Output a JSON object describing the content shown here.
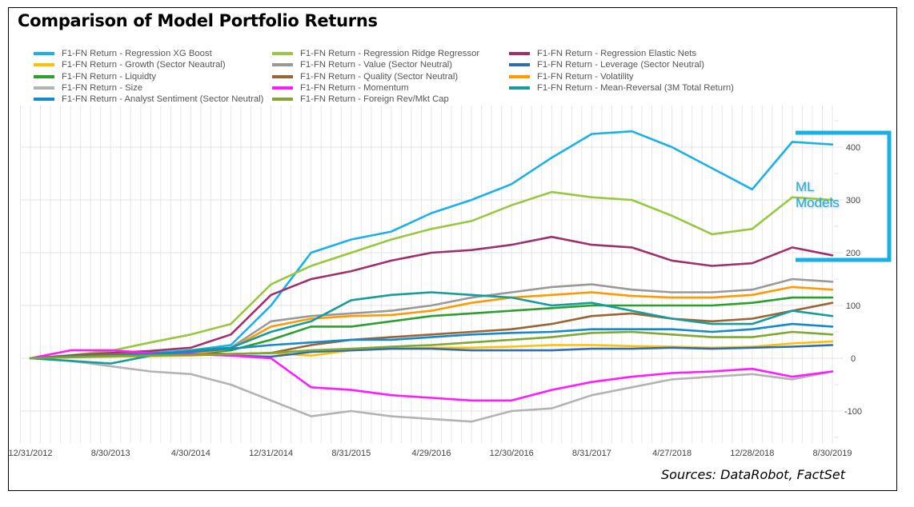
{
  "title": "Comparison of Model Portfolio Returns",
  "source": "Sources: DataRobot, FactSet",
  "annotation": {
    "label_line1": "ML",
    "label_line2": "Models",
    "color": "#18aee6"
  },
  "chart_data": {
    "type": "line",
    "title": "Comparison of Model Portfolio Returns",
    "xlabel": "",
    "ylabel": "",
    "ylim": [
      -170,
      460
    ],
    "yticks": [
      -100,
      0,
      100,
      200,
      300,
      400
    ],
    "y_axis_side": "right",
    "grid": true,
    "legend_position": "top",
    "x_tick_labels": [
      "12/31/2012",
      "8/30/2013",
      "4/30/2014",
      "12/31/2014",
      "8/31/2015",
      "4/29/2016",
      "12/30/2016",
      "8/31/2017",
      "4/27/2018",
      "12/28/2018",
      "8/30/2019"
    ],
    "x_months": [
      0,
      4,
      8,
      12,
      16,
      20,
      24,
      28,
      32,
      36,
      40,
      44,
      48,
      52,
      56,
      60,
      64,
      68,
      72,
      76,
      80
    ],
    "series": [
      {
        "name": "F1-FN Return - Regression XG Boost",
        "color": "#1ab0e8",
        "values": [
          0,
          4,
          8,
          10,
          15,
          25,
          100,
          200,
          225,
          240,
          275,
          300,
          330,
          380,
          425,
          430,
          400,
          360,
          320,
          410,
          405
        ]
      },
      {
        "name": "F1-FN Return - Regression Ridge Regressor",
        "color": "#96c93d",
        "values": [
          0,
          6,
          14,
          30,
          45,
          65,
          140,
          175,
          200,
          225,
          245,
          260,
          290,
          315,
          305,
          300,
          270,
          235,
          245,
          305,
          300
        ]
      },
      {
        "name": "F1-FN Return - Regression Elastic Nets",
        "color": "#a0306a",
        "values": [
          0,
          5,
          10,
          14,
          20,
          45,
          120,
          150,
          165,
          185,
          200,
          205,
          215,
          230,
          215,
          210,
          185,
          175,
          180,
          210,
          195
        ]
      },
      {
        "name": "F1-FN Return - Growth (Sector Neautral)",
        "color": "#ffc000",
        "values": [
          0,
          2,
          3,
          4,
          5,
          8,
          10,
          5,
          15,
          18,
          20,
          20,
          22,
          25,
          25,
          23,
          22,
          20,
          22,
          28,
          32
        ]
      },
      {
        "name": "F1-FN Return - Value (Sector Neutral)",
        "color": "#999999",
        "values": [
          0,
          3,
          5,
          8,
          12,
          20,
          70,
          80,
          85,
          90,
          100,
          115,
          125,
          135,
          140,
          130,
          125,
          125,
          130,
          150,
          145
        ]
      },
      {
        "name": "F1-FN Return - Leverage (Sector Neutral)",
        "color": "#2e6db4",
        "values": [
          0,
          2,
          5,
          6,
          8,
          5,
          3,
          12,
          15,
          18,
          18,
          15,
          15,
          15,
          18,
          18,
          20,
          18,
          20,
          22,
          25
        ]
      },
      {
        "name": "F1-FN Return - Liquidty",
        "color": "#2ca02c",
        "values": [
          0,
          3,
          4,
          6,
          8,
          15,
          35,
          60,
          60,
          70,
          80,
          85,
          90,
          95,
          100,
          100,
          100,
          100,
          105,
          115,
          115
        ]
      },
      {
        "name": "F1-FN Return - Quality (Sector Neutral)",
        "color": "#9b6434",
        "values": [
          0,
          4,
          8,
          10,
          10,
          8,
          10,
          25,
          35,
          40,
          45,
          50,
          55,
          65,
          80,
          85,
          75,
          70,
          75,
          90,
          105
        ]
      },
      {
        "name": "F1-FN Return - Volatility",
        "color": "#ff9900",
        "values": [
          0,
          2,
          4,
          5,
          8,
          18,
          60,
          75,
          80,
          82,
          90,
          105,
          115,
          120,
          125,
          118,
          115,
          115,
          120,
          135,
          130
        ]
      },
      {
        "name": "F1-FN Return - Size",
        "color": "#b3b3b3",
        "values": [
          0,
          -5,
          -15,
          -25,
          -30,
          -50,
          -80,
          -110,
          -100,
          -110,
          -115,
          -120,
          -100,
          -95,
          -70,
          -55,
          -40,
          -35,
          -30,
          -40,
          -25
        ]
      },
      {
        "name": "F1-FN Return - Momentum",
        "color": "#ff1aff",
        "values": [
          0,
          15,
          15,
          10,
          8,
          5,
          0,
          -55,
          -60,
          -70,
          -75,
          -80,
          -80,
          -60,
          -45,
          -35,
          -28,
          -25,
          -20,
          -35,
          -25
        ]
      },
      {
        "name": "F1-FN Return - Mean-Reversal (3M Total Return)",
        "color": "#179c9c",
        "values": [
          0,
          -5,
          -10,
          5,
          15,
          20,
          50,
          70,
          110,
          120,
          125,
          120,
          115,
          100,
          105,
          90,
          75,
          65,
          65,
          90,
          80
        ]
      },
      {
        "name": "F1-FN Return - Analyst Sentiment (Sector Neutral)",
        "color": "#148ac8",
        "values": [
          0,
          3,
          5,
          8,
          12,
          18,
          25,
          30,
          35,
          35,
          40,
          45,
          48,
          50,
          55,
          55,
          55,
          50,
          55,
          65,
          60
        ]
      },
      {
        "name": "F1-FN Return - Foreign Rev/Mkt Cap",
        "color": "#7fa832",
        "values": [
          0,
          2,
          4,
          5,
          6,
          8,
          10,
          15,
          18,
          22,
          25,
          30,
          35,
          40,
          48,
          50,
          45,
          40,
          40,
          50,
          45
        ]
      }
    ]
  },
  "legend_layout": [
    [
      0,
      1,
      2
    ],
    [
      3,
      4,
      5
    ],
    [
      6,
      7,
      8
    ],
    [
      9,
      10,
      11
    ],
    [
      12,
      13
    ]
  ]
}
